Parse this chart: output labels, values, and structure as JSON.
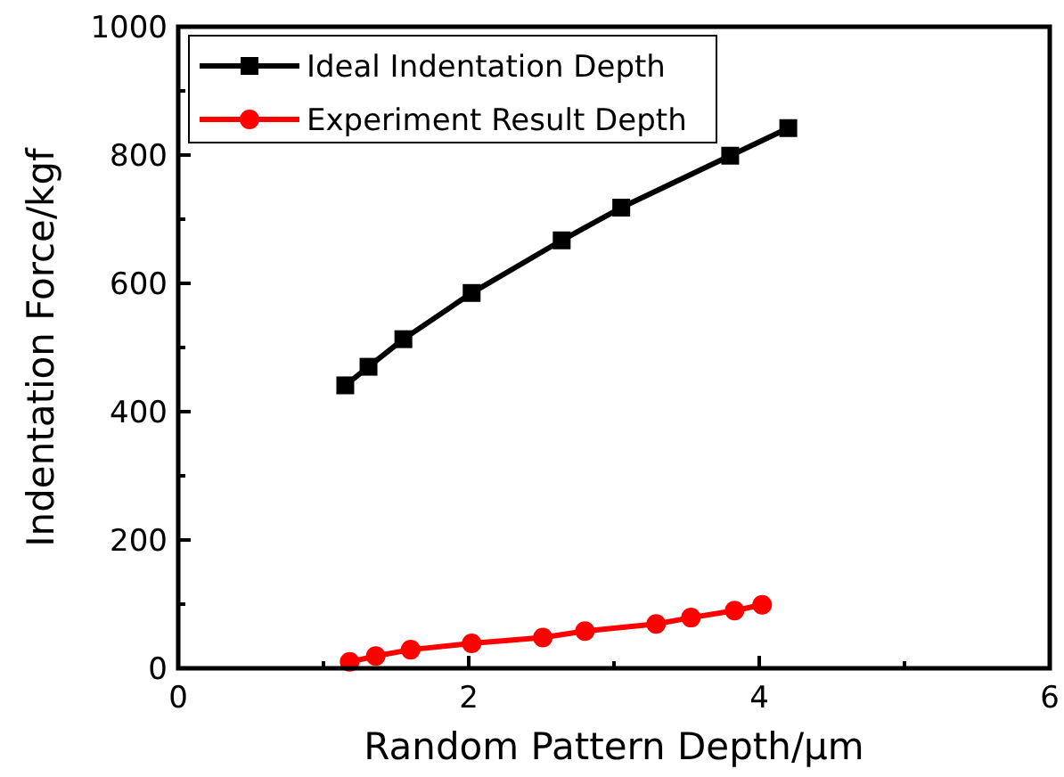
{
  "chart_data": {
    "type": "line",
    "xlabel": "Random Pattern Depth/μm",
    "ylabel": "Indentation Force/kgf",
    "xlim": [
      0,
      6
    ],
    "ylim": [
      0,
      1000
    ],
    "xticks": [
      0,
      {
        "value": 1,
        "label": null
      },
      2,
      {
        "value": 3,
        "label": null
      },
      4,
      {
        "value": 5,
        "label": null
      },
      6
    ],
    "yticks": [
      0,
      {
        "value": 100,
        "label": null
      },
      200,
      {
        "value": 300,
        "label": null
      },
      400,
      {
        "value": 500,
        "label": null
      },
      600,
      {
        "value": 700,
        "label": null
      },
      800,
      {
        "value": 900,
        "label": null
      },
      1000
    ],
    "legend": "top left",
    "grid": false,
    "line_style": "solid",
    "series": [
      {
        "name": "Ideal Indentation Depth",
        "color": "#000000",
        "marker": "square",
        "x": [
          1.15,
          1.31,
          1.55,
          2.02,
          2.64,
          3.05,
          3.8,
          4.2
        ],
        "values": [
          441,
          470,
          513,
          585,
          667,
          718,
          799,
          842
        ]
      },
      {
        "name": "Experiment Result Depth",
        "color": "#ff0000",
        "marker": "circle",
        "x": [
          1.18,
          1.36,
          1.6,
          2.02,
          2.51,
          2.8,
          3.29,
          3.53,
          3.83,
          4.02
        ],
        "values": [
          10,
          19,
          29,
          39,
          48,
          58,
          69,
          79,
          90,
          99
        ]
      }
    ]
  }
}
